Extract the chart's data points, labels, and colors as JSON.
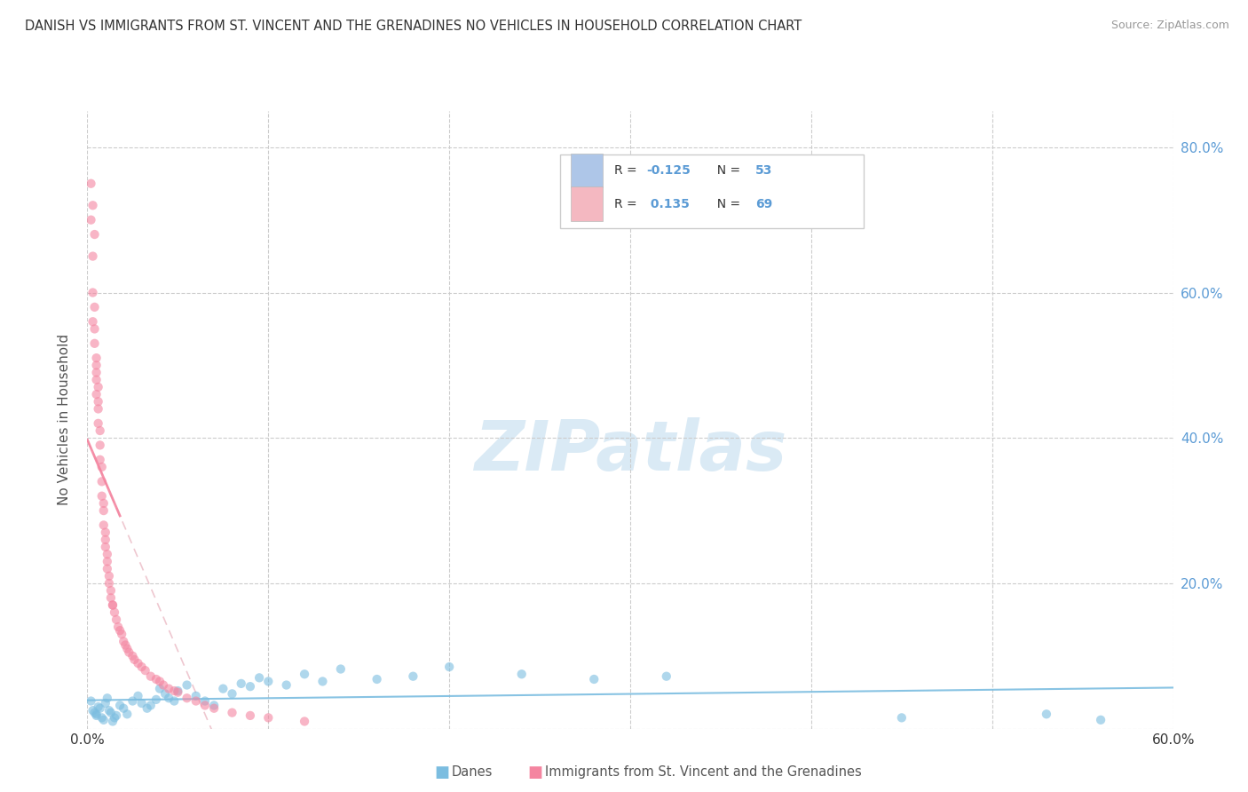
{
  "title": "DANISH VS IMMIGRANTS FROM ST. VINCENT AND THE GRENADINES NO VEHICLES IN HOUSEHOLD CORRELATION CHART",
  "source": "Source: ZipAtlas.com",
  "ylabel": "No Vehicles in Household",
  "legend_entry1_color": "#aec6e8",
  "legend_entry2_color": "#f4b8c1",
  "danes_color": "#7bbde0",
  "stvincent_color": "#f485a0",
  "trendline_danes_color": "#7bbde0",
  "trendline_stvincent_color": "#f485a0",
  "trendline_sv_dashed_color": "#e8b0bc",
  "watermark_color": "#daeaf5",
  "right_tick_color": "#5b9bd5",
  "danes_legend_label": "Danes",
  "stvincent_legend_label": "Immigrants from St. Vincent and the Grenadines",
  "xlim": [
    0.0,
    0.6
  ],
  "ylim": [
    0.0,
    0.85
  ],
  "danes_scatter_x": [
    0.002,
    0.003,
    0.004,
    0.005,
    0.005,
    0.006,
    0.007,
    0.008,
    0.009,
    0.01,
    0.011,
    0.012,
    0.013,
    0.014,
    0.015,
    0.016,
    0.018,
    0.02,
    0.022,
    0.025,
    0.028,
    0.03,
    0.033,
    0.035,
    0.038,
    0.04,
    0.043,
    0.045,
    0.048,
    0.05,
    0.055,
    0.06,
    0.065,
    0.07,
    0.075,
    0.08,
    0.085,
    0.09,
    0.095,
    0.1,
    0.11,
    0.12,
    0.13,
    0.14,
    0.16,
    0.18,
    0.2,
    0.24,
    0.28,
    0.32,
    0.45,
    0.53,
    0.56
  ],
  "danes_scatter_y": [
    0.038,
    0.025,
    0.022,
    0.018,
    0.02,
    0.03,
    0.028,
    0.015,
    0.012,
    0.035,
    0.042,
    0.025,
    0.022,
    0.01,
    0.015,
    0.018,
    0.032,
    0.028,
    0.02,
    0.038,
    0.045,
    0.035,
    0.028,
    0.032,
    0.04,
    0.055,
    0.048,
    0.042,
    0.038,
    0.052,
    0.06,
    0.045,
    0.038,
    0.032,
    0.055,
    0.048,
    0.062,
    0.058,
    0.07,
    0.065,
    0.06,
    0.075,
    0.065,
    0.082,
    0.068,
    0.072,
    0.085,
    0.075,
    0.068,
    0.072,
    0.015,
    0.02,
    0.012
  ],
  "sv_scatter_x": [
    0.002,
    0.003,
    0.003,
    0.004,
    0.004,
    0.005,
    0.005,
    0.005,
    0.006,
    0.006,
    0.007,
    0.007,
    0.008,
    0.008,
    0.009,
    0.009,
    0.01,
    0.01,
    0.011,
    0.011,
    0.012,
    0.013,
    0.014,
    0.015,
    0.016,
    0.017,
    0.018,
    0.019,
    0.02,
    0.021,
    0.022,
    0.023,
    0.025,
    0.026,
    0.028,
    0.03,
    0.032,
    0.035,
    0.038,
    0.04,
    0.042,
    0.045,
    0.048,
    0.05,
    0.055,
    0.06,
    0.065,
    0.07,
    0.08,
    0.09,
    0.1,
    0.12,
    0.002,
    0.003,
    0.004,
    0.005,
    0.006,
    0.007,
    0.008,
    0.009,
    0.01,
    0.011,
    0.012,
    0.013,
    0.014,
    0.003,
    0.004,
    0.005,
    0.006
  ],
  "sv_scatter_y": [
    0.7,
    0.65,
    0.6,
    0.58,
    0.55,
    0.51,
    0.49,
    0.46,
    0.44,
    0.42,
    0.39,
    0.37,
    0.34,
    0.32,
    0.3,
    0.28,
    0.26,
    0.25,
    0.23,
    0.22,
    0.2,
    0.18,
    0.17,
    0.16,
    0.15,
    0.14,
    0.135,
    0.13,
    0.12,
    0.115,
    0.11,
    0.105,
    0.1,
    0.095,
    0.09,
    0.085,
    0.08,
    0.072,
    0.068,
    0.065,
    0.06,
    0.055,
    0.052,
    0.05,
    0.042,
    0.038,
    0.032,
    0.028,
    0.022,
    0.018,
    0.015,
    0.01,
    0.75,
    0.72,
    0.68,
    0.5,
    0.47,
    0.41,
    0.36,
    0.31,
    0.27,
    0.24,
    0.21,
    0.19,
    0.17,
    0.56,
    0.53,
    0.48,
    0.45
  ]
}
